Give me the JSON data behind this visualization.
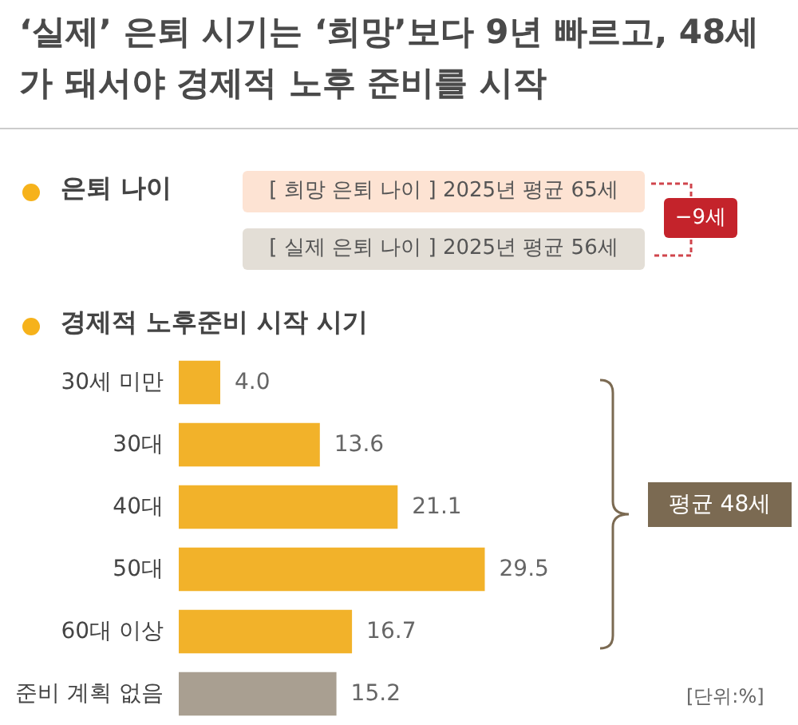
{
  "chart_data": {
    "type": "bar",
    "orientation": "horizontal",
    "title": "‘실제’ 은퇴 시기는 ‘희망’보다 9년 빠르고, 48세가 돼서야 경제적 노후 준비를 시작",
    "subtitle": "경제적 노후준비 시작 시기",
    "annotations": [
      "은퇴 나이",
      "[ 희망 은퇴 나이 ] 2025년 평균 65세",
      "[ 실제 은퇴 나이 ] 2025년 평균 56세",
      "−9세",
      "평균 48세",
      "[단위:%]"
    ],
    "categories": [
      "30세 미만",
      "30대",
      "40대",
      "50대",
      "60대 이상",
      "준비 계획 없음"
    ],
    "values": [
      4.0,
      13.6,
      21.1,
      29.5,
      16.7,
      15.2
    ],
    "value_labels": [
      "4.0",
      "13.6",
      "21.1",
      "29.5",
      "16.7",
      "15.2"
    ],
    "colors": [
      "#f2b22a",
      "#f2b22a",
      "#f2b22a",
      "#f2b22a",
      "#f2b22a",
      "#a99f91"
    ]
  }
}
